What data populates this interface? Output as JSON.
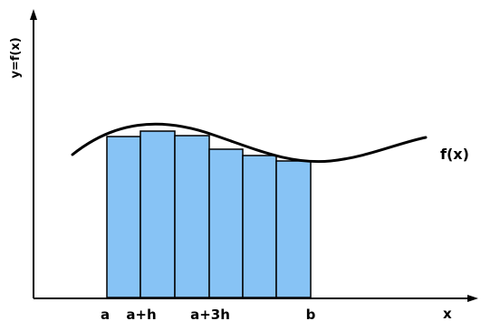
{
  "diagram": {
    "y_axis_label": "y=f(x)",
    "x_axis_label": "x",
    "curve_label": "f(x)",
    "x_ticks": [
      "a",
      "a+h",
      "a+3h",
      "b"
    ],
    "rectangle_count": 6,
    "rectangle_fill": "#87c3f5",
    "rectangle_stroke": "#000000",
    "curve_color": "#000000",
    "axis_color": "#000000"
  }
}
